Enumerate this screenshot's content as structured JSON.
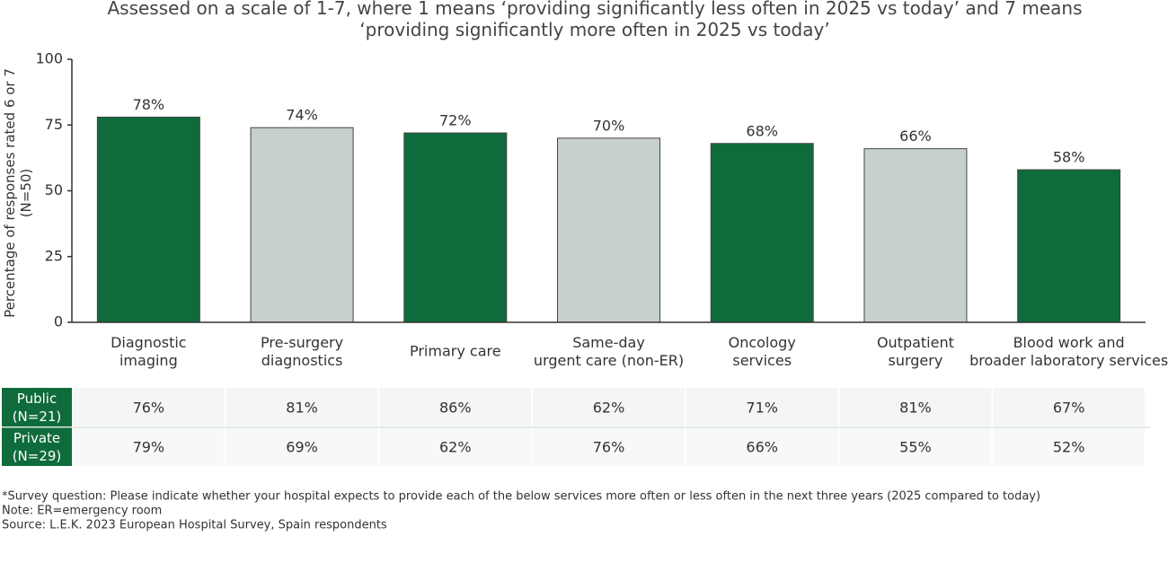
{
  "chart_data": {
    "type": "bar",
    "title": "Assessed on a scale of 1-7, where 1 means ‘providing significantly less often in 2025 vs today’ and 7 means\n‘providing significantly more often in 2025 vs today’",
    "y_label": "Percentage of responses rated 6 or 7\n(N=50)",
    "categories": [
      "Diagnostic\nimaging",
      "Pre-surgery\ndiagnostics",
      "Primary care",
      "Same-day\nurgent care (non-ER)",
      "Oncology\nservices",
      "Outpatient\nsurgery",
      "Blood work and\nbroader laboratory services"
    ],
    "values": [
      78,
      74,
      72,
      70,
      68,
      66,
      58
    ],
    "value_labels": [
      "78%",
      "74%",
      "72%",
      "70%",
      "68%",
      "66%",
      "58%"
    ],
    "colors": [
      "#0f6b3b",
      "#c7d0cc",
      "#0f6b3b",
      "#c7d0cc",
      "#0f6b3b",
      "#c7d0cc",
      "#0f6b3b"
    ],
    "ylim": [
      0,
      100
    ],
    "yticks": [
      0,
      25,
      50,
      75,
      100
    ],
    "grid": false
  },
  "table": {
    "rows": [
      {
        "header": "Public\n(N=21)",
        "cells": [
          "76%",
          "81%",
          "86%",
          "62%",
          "71%",
          "81%",
          "67%"
        ]
      },
      {
        "header": "Private\n(N=29)",
        "cells": [
          "79%",
          "69%",
          "62%",
          "76%",
          "66%",
          "55%",
          "52%"
        ]
      }
    ]
  },
  "notes": [
    "*Survey question: Please indicate whether your hospital expects to provide each of the below services more often or less often in the next three years (2025 compared to today)",
    "Note: ER=emergency room",
    "Source: L.E.K. 2023 European Hospital Survey, Spain respondents"
  ]
}
